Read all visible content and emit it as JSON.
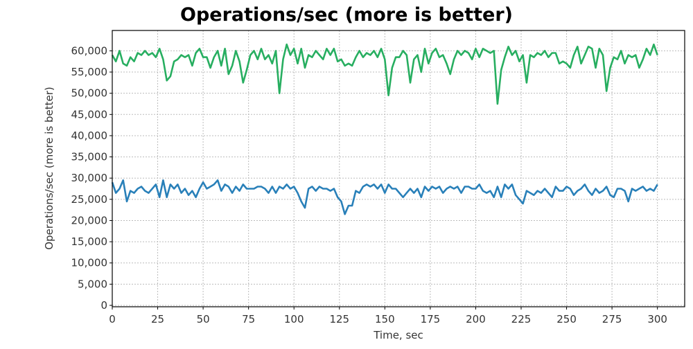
{
  "chart_data": {
    "type": "line",
    "title": "Operations/sec (more is better)",
    "xlabel": "Time, sec",
    "ylabel": "Operations/sec (more is better)",
    "xlim": [
      0,
      315
    ],
    "ylim": [
      0,
      64800
    ],
    "grid": true,
    "x_ticks": [
      0,
      25,
      50,
      75,
      100,
      125,
      150,
      175,
      200,
      225,
      250,
      275,
      300
    ],
    "x_tick_labels": [
      "0",
      "25",
      "50",
      "75",
      "100",
      "125",
      "150",
      "175",
      "200",
      "225",
      "250",
      "275",
      "300"
    ],
    "y_ticks": [
      0,
      5000,
      10000,
      15000,
      20000,
      25000,
      30000,
      35000,
      40000,
      45000,
      50000,
      55000,
      60000
    ],
    "y_tick_labels": [
      "0",
      "5,000",
      "10,000",
      "15,000",
      "20,000",
      "25,000",
      "30,000",
      "35,000",
      "40,000",
      "45,000",
      "50,000",
      "55,000",
      "60,000"
    ],
    "x_start": 0,
    "x_step": 2,
    "series": [
      {
        "name": "green-series",
        "color": "#27ae60",
        "values": [
          59000,
          57500,
          60000,
          57000,
          56500,
          58500,
          57500,
          59500,
          59000,
          60000,
          59000,
          59500,
          58500,
          60500,
          58000,
          53000,
          54000,
          57500,
          58000,
          59000,
          58500,
          59000,
          56500,
          59500,
          60500,
          58500,
          58500,
          56000,
          58500,
          60000,
          56500,
          60500,
          54500,
          56500,
          60000,
          57500,
          52500,
          55500,
          59000,
          60000,
          58000,
          60500,
          58000,
          59000,
          57000,
          60000,
          50000,
          58000,
          61500,
          59000,
          60500,
          57000,
          60500,
          56000,
          59000,
          58500,
          60000,
          59000,
          58000,
          60500,
          59000,
          60500,
          57500,
          58000,
          56500,
          57000,
          56500,
          58500,
          60000,
          58500,
          59500,
          59000,
          60000,
          58500,
          60500,
          58000,
          49500,
          56000,
          58500,
          58500,
          60000,
          59000,
          52500,
          58000,
          59000,
          55000,
          60500,
          57000,
          59500,
          60500,
          58500,
          59000,
          57000,
          54500,
          58000,
          60000,
          59000,
          60000,
          59500,
          58000,
          60500,
          58500,
          60500,
          60000,
          59500,
          60000,
          47500,
          55500,
          58500,
          61000,
          59000,
          60000,
          57500,
          59000,
          52500,
          59000,
          58500,
          59500,
          59000,
          60000,
          58500,
          59500,
          59500,
          57000,
          57500,
          57000,
          56000,
          59000,
          61000,
          57000,
          59000,
          61000,
          60500,
          56000,
          60500,
          59000,
          50500,
          56000,
          58500,
          58000,
          60000,
          57000,
          59000,
          58500,
          59000,
          56000,
          58000,
          60500,
          59000,
          61500,
          59000
        ]
      },
      {
        "name": "blue-series",
        "color": "#2980b9",
        "values": [
          29000,
          26500,
          27500,
          29500,
          24500,
          27000,
          26500,
          27500,
          28000,
          27000,
          26500,
          27500,
          28500,
          25500,
          29500,
          25500,
          28500,
          27500,
          28500,
          26500,
          27500,
          26000,
          27000,
          25500,
          27500,
          29000,
          27500,
          28000,
          28500,
          29500,
          27000,
          28500,
          28000,
          26500,
          28000,
          27000,
          28500,
          27500,
          27500,
          27500,
          28000,
          28000,
          27500,
          26500,
          28000,
          26500,
          28000,
          27500,
          28500,
          27500,
          28000,
          26500,
          24500,
          23000,
          27500,
          28000,
          27000,
          28000,
          27500,
          27500,
          27000,
          27500,
          25500,
          24500,
          21500,
          23500,
          23500,
          27000,
          26500,
          28000,
          28500,
          28000,
          28500,
          27500,
          28500,
          26500,
          28500,
          27500,
          27500,
          26500,
          25500,
          26500,
          27500,
          26500,
          27500,
          25500,
          28000,
          27000,
          28000,
          27500,
          28000,
          26500,
          27500,
          28000,
          27500,
          28000,
          26500,
          28000,
          28000,
          27500,
          27500,
          28500,
          27000,
          26500,
          27000,
          25500,
          28000,
          25500,
          28500,
          27500,
          28500,
          26000,
          25000,
          24000,
          27000,
          26500,
          26000,
          27000,
          26500,
          27500,
          26500,
          25500,
          28000,
          27000,
          27000,
          28000,
          27500,
          26000,
          27000,
          27500,
          28500,
          27000,
          26000,
          27500,
          26500,
          27000,
          28000,
          26000,
          25500,
          27500,
          27500,
          27000,
          24500,
          27500,
          27000,
          27500,
          28000,
          27000,
          27500,
          27000,
          28500
        ]
      }
    ]
  }
}
